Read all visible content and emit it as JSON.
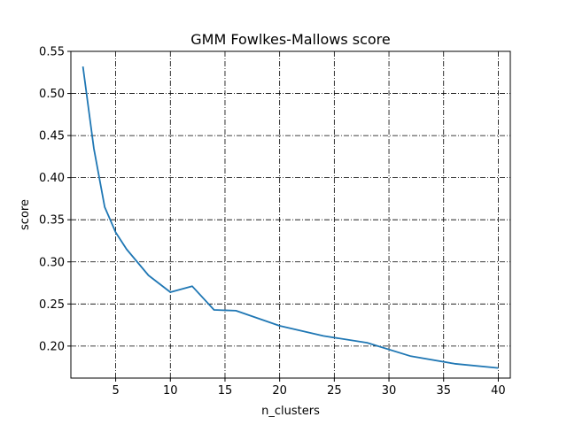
{
  "chart_data": {
    "type": "line",
    "title": "GMM Fowlkes-Mallows score",
    "xlabel": "n_clusters",
    "ylabel": "score",
    "xlim": [
      0.9,
      41.1
    ],
    "ylim": [
      0.162,
      0.55
    ],
    "xticks": [
      5,
      10,
      15,
      20,
      25,
      30,
      35,
      40
    ],
    "yticks": [
      0.2,
      0.25,
      0.3,
      0.35,
      0.4,
      0.45,
      0.5,
      0.55
    ],
    "grid": true,
    "grid_style": "dashdot",
    "series": [
      {
        "color": "#1f77b4",
        "x": [
          2,
          3,
          4,
          5,
          6,
          8,
          10,
          12,
          14,
          16,
          20,
          24,
          28,
          32,
          36,
          40
        ],
        "y": [
          0.532,
          0.435,
          0.365,
          0.335,
          0.315,
          0.284,
          0.264,
          0.271,
          0.243,
          0.242,
          0.224,
          0.212,
          0.204,
          0.188,
          0.179,
          0.174
        ]
      }
    ]
  }
}
